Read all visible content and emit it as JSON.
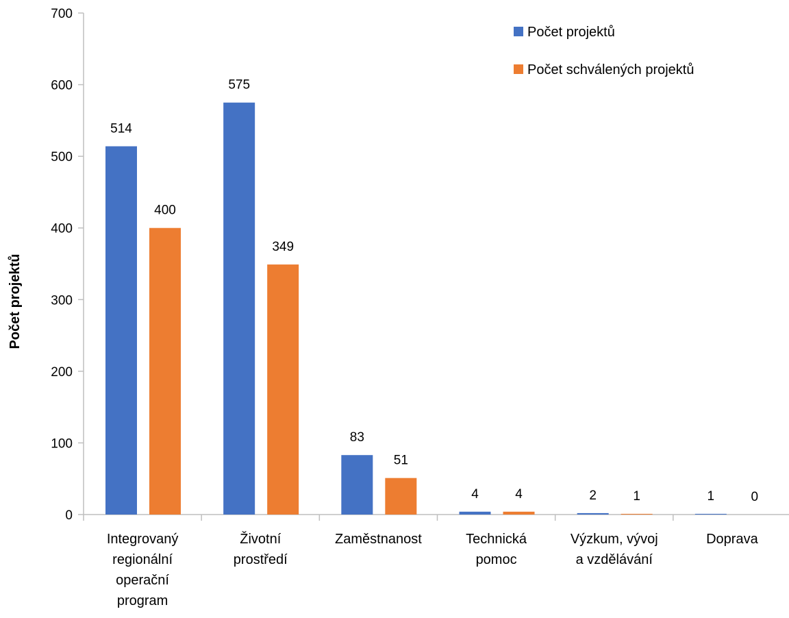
{
  "chart_data": {
    "type": "bar",
    "title": "",
    "xlabel": "",
    "ylabel": "Počet projektů",
    "ylim": [
      0,
      700
    ],
    "yticks": [
      0,
      100,
      200,
      300,
      400,
      500,
      600,
      700
    ],
    "grid": false,
    "legend_position": "top-right",
    "categories": [
      [
        "Integrovaný",
        "regionální",
        "operační",
        "program"
      ],
      [
        "Životní",
        "prostředí"
      ],
      [
        "Zaměstnanost"
      ],
      [
        "Technická",
        "pomoc"
      ],
      [
        "Výzkum, vývoj",
        "a vzdělávání"
      ],
      [
        "Doprava"
      ]
    ],
    "series": [
      {
        "name": "Počet projektů",
        "color": "#4472C4",
        "values": [
          514,
          575,
          83,
          4,
          2,
          1
        ]
      },
      {
        "name": "Počet schválených projektů",
        "color": "#ED7D31",
        "values": [
          400,
          349,
          51,
          4,
          1,
          0
        ]
      }
    ]
  }
}
